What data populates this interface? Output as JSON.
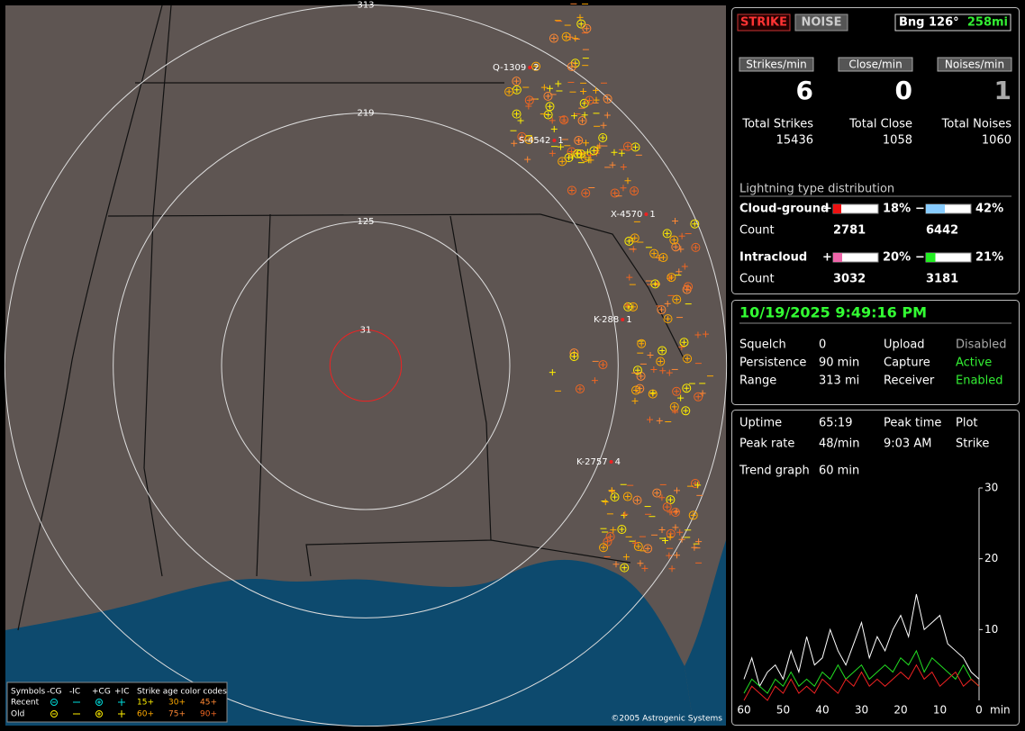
{
  "map": {
    "ring_labels": [
      313,
      219,
      125,
      31
    ],
    "cells": [
      {
        "label": "Q-1309",
        "count": 2
      },
      {
        "label": "S-4542",
        "count": 1
      },
      {
        "label": "X-4570",
        "count": 1
      },
      {
        "label": "K-288",
        "count": 1
      },
      {
        "label": "K-2757",
        "count": 4
      }
    ],
    "legend": {
      "symbols_title": "Symbols",
      "headers": [
        "-CG",
        "-IC",
        "+CG",
        "+IC"
      ],
      "age_title": "Strike age color codes",
      "rows": [
        {
          "label": "Recent",
          "ages": [
            "15+",
            "30+",
            "45+"
          ]
        },
        {
          "label": "Old",
          "ages": [
            "60+",
            "75+",
            "90+"
          ]
        }
      ]
    },
    "copyright": "©2005 Astrogenic Systems"
  },
  "panel": {
    "buttons": [
      "STRIKE",
      "NOISE"
    ],
    "bearing": "Bng 126°",
    "distance": "258mi",
    "rates": [
      {
        "label": "Strikes/min",
        "value": 6
      },
      {
        "label": "Close/min",
        "value": 0
      },
      {
        "label": "Noises/min",
        "value": 1
      }
    ],
    "totals": [
      {
        "label": "Total Strikes",
        "value": 15436
      },
      {
        "label": "Total Close",
        "value": 1058
      },
      {
        "label": "Total Noises",
        "value": 1060
      }
    ],
    "distribution": {
      "title": "Lightning type distribution",
      "rows": [
        {
          "label": "Cloud-ground",
          "pos_sign": "+",
          "pos": {
            "value": 18,
            "label": "18%"
          },
          "neg_sign": "−",
          "neg": {
            "value": 42,
            "label": "42%"
          },
          "count_label": "Count",
          "pos_count": 2781,
          "neg_count": 6442
        },
        {
          "label": "Intracloud",
          "pos_sign": "+",
          "pos": {
            "value": 20,
            "label": "20%"
          },
          "neg_sign": "−",
          "neg": {
            "value": 21,
            "label": "21%"
          },
          "count_label": "Count",
          "pos_count": 3032,
          "neg_count": 3181
        }
      ]
    },
    "datetime": "10/19/2025 9:49:16 PM",
    "settings": [
      [
        "Squelch",
        0,
        "Upload",
        "Disabled"
      ],
      [
        "Persistence",
        "90 min",
        "Capture",
        "Active"
      ],
      [
        "Range",
        "313 mi",
        "Receiver",
        "Enabled"
      ]
    ],
    "stats": [
      [
        "Uptime",
        "65:19",
        "Peak time",
        "Plot"
      ],
      [
        "Peak rate",
        "48/min",
        "9:03 AM",
        "Strike"
      ],
      [
        "Trend graph",
        "60 min"
      ]
    ],
    "trend": {
      "type": "line",
      "x": [
        60,
        58,
        56,
        54,
        52,
        50,
        48,
        46,
        44,
        42,
        40,
        38,
        36,
        34,
        32,
        30,
        28,
        26,
        24,
        22,
        20,
        18,
        16,
        14,
        12,
        10,
        8,
        6,
        4,
        2,
        0
      ],
      "xlim": [
        60,
        0
      ],
      "xticks": [
        60,
        50,
        40,
        30,
        20,
        10,
        0
      ],
      "x_unit": "min",
      "ylim": [
        0,
        30
      ],
      "yticks": [
        10,
        20,
        30
      ],
      "series": [
        {
          "color": "#ffffff",
          "values": [
            3,
            6,
            2,
            4,
            5,
            3,
            7,
            4,
            9,
            5,
            6,
            10,
            7,
            5,
            8,
            11,
            6,
            9,
            7,
            10,
            12,
            9,
            15,
            10,
            11,
            12,
            8,
            7,
            6,
            4,
            3
          ]
        },
        {
          "color": "#22dd22",
          "values": [
            1,
            3,
            2,
            1,
            3,
            2,
            4,
            2,
            3,
            2,
            4,
            3,
            5,
            3,
            4,
            5,
            3,
            4,
            5,
            4,
            6,
            5,
            7,
            4,
            6,
            5,
            4,
            3,
            5,
            3,
            2
          ]
        },
        {
          "color": "#ee2222",
          "values": [
            0,
            2,
            1,
            0,
            2,
            1,
            3,
            1,
            2,
            1,
            3,
            2,
            1,
            3,
            2,
            4,
            2,
            3,
            2,
            3,
            4,
            3,
            5,
            3,
            4,
            2,
            3,
            4,
            2,
            3,
            2
          ]
        }
      ]
    }
  }
}
